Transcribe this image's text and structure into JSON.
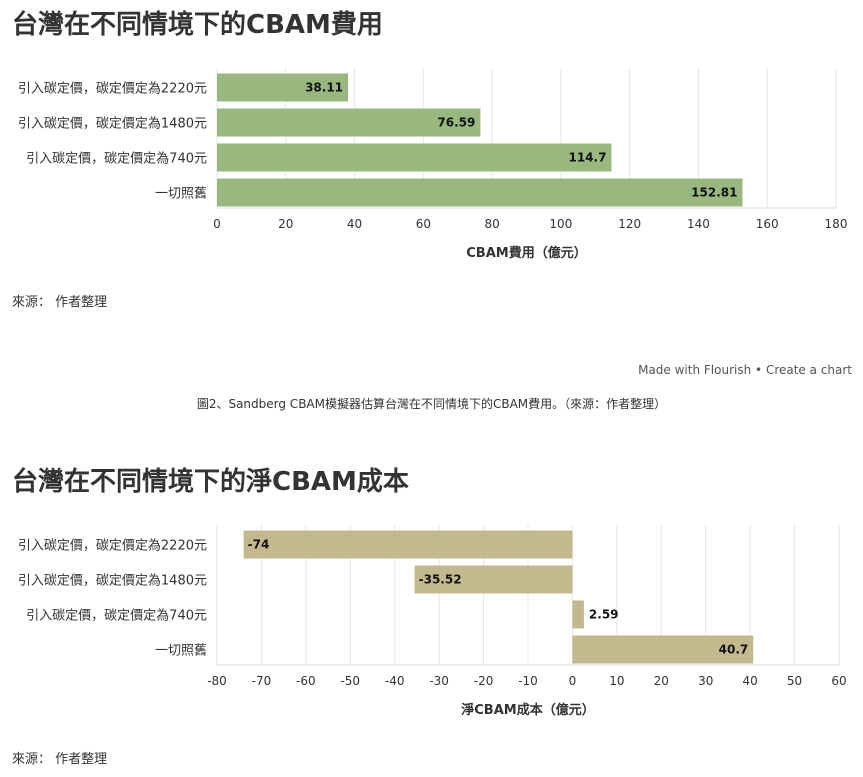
{
  "charts": [
    {
      "title": "台灣在不同情境下的CBAM費用",
      "source": "來源： 作者整理",
      "chart_data": {
        "type": "bar",
        "orientation": "horizontal",
        "categories": [
          "引入碳定價，碳定價定為2220元",
          "引入碳定價，碳定價定為1480元",
          "引入碳定價，碳定價定為740元",
          "一切照舊"
        ],
        "values": [
          38.11,
          76.59,
          114.7,
          152.81
        ],
        "value_labels": [
          "38.11",
          "76.59",
          "114.7",
          "152.81"
        ],
        "xlabel": "CBAM費用（億元）",
        "ylabel": "",
        "xlim": [
          0,
          180
        ],
        "xticks": [
          0,
          20,
          40,
          60,
          80,
          100,
          120,
          140,
          160,
          180
        ],
        "grid": true,
        "color": "#98b880"
      }
    },
    {
      "title": "台灣在不同情境下的淨CBAM成本",
      "source": "來源： 作者整理",
      "chart_data": {
        "type": "bar",
        "orientation": "horizontal",
        "categories": [
          "引入碳定價，碳定價定為2220元",
          "引入碳定價，碳定價定為1480元",
          "引入碳定價，碳定價定為740元",
          "一切照舊"
        ],
        "values": [
          -74,
          -35.52,
          2.59,
          40.7
        ],
        "value_labels": [
          "-74",
          "-35.52",
          "2.59",
          "40.7"
        ],
        "xlabel": "淨CBAM成本（億元）",
        "ylabel": "",
        "xlim": [
          -80,
          60
        ],
        "xticks": [
          -80,
          -70,
          -60,
          -50,
          -40,
          -30,
          -20,
          -10,
          0,
          10,
          20,
          30,
          40,
          50,
          60
        ],
        "grid": true,
        "color": "#c4b98e"
      }
    }
  ],
  "flourish": {
    "made_with": "Made with Flourish",
    "separator": "•",
    "create": "Create a chart"
  },
  "caption": "圖2、Sandberg CBAM模擬器估算台灣在不同情境下的CBAM費用。（來源：作者整理）"
}
